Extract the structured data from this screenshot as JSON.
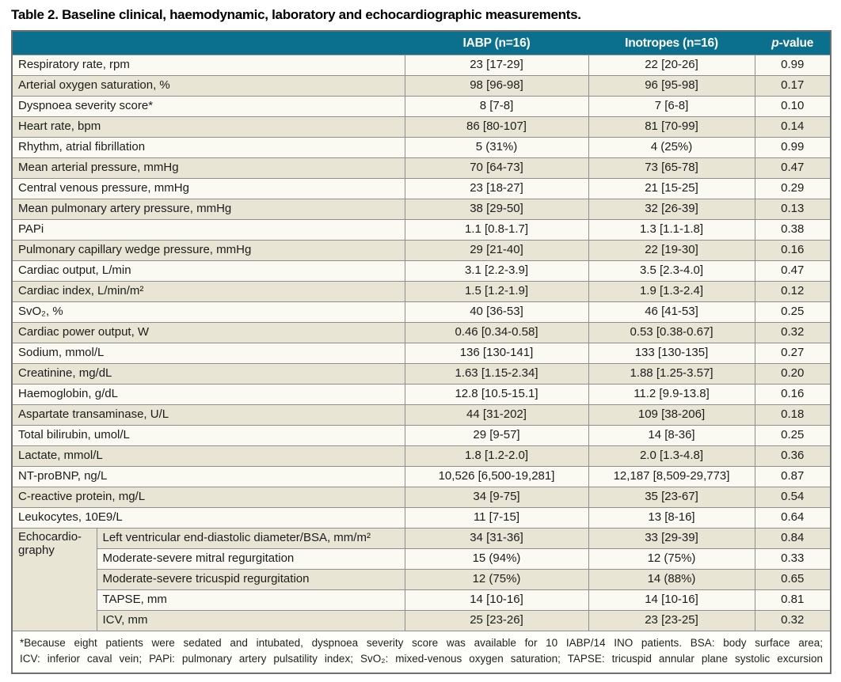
{
  "title": "Table 2. Baseline clinical, haemodynamic, laboratory and echocardiographic measurements.",
  "table": {
    "headers": {
      "parameter": "",
      "iabp": "IABP (n=16)",
      "inotropes": "Inotropes (n=16)",
      "pvalue": "p-value"
    },
    "rows": [
      {
        "label": "Respiratory rate, rpm",
        "iabp": "23 [17-29]",
        "inotropes": "22 [20-26]",
        "p": "0.99"
      },
      {
        "label": "Arterial oxygen saturation, %",
        "iabp": "98 [96-98]",
        "inotropes": "96 [95-98]",
        "p": "0.17"
      },
      {
        "label": "Dyspnoea severity score*",
        "iabp": "8 [7-8]",
        "inotropes": "7 [6-8]",
        "p": "0.10"
      },
      {
        "label": "Heart rate, bpm",
        "iabp": "86 [80-107]",
        "inotropes": "81 [70-99]",
        "p": "0.14"
      },
      {
        "label": "Rhythm, atrial fibrillation",
        "iabp": "5 (31%)",
        "inotropes": "4 (25%)",
        "p": "0.99"
      },
      {
        "label": "Mean arterial pressure, mmHg",
        "iabp": "70 [64-73]",
        "inotropes": "73 [65-78]",
        "p": "0.47"
      },
      {
        "label": "Central venous pressure, mmHg",
        "iabp": "23 [18-27]",
        "inotropes": "21 [15-25]",
        "p": "0.29"
      },
      {
        "label": "Mean pulmonary artery pressure, mmHg",
        "iabp": "38 [29-50]",
        "inotropes": "32 [26-39]",
        "p": "0.13"
      },
      {
        "label": "PAPi",
        "iabp": "1.1 [0.8-1.7]",
        "inotropes": "1.3 [1.1-1.8]",
        "p": "0.38"
      },
      {
        "label": "Pulmonary capillary wedge pressure, mmHg",
        "iabp": "29 [21-40]",
        "inotropes": "22 [19-30]",
        "p": "0.16"
      },
      {
        "label": "Cardiac output, L/min",
        "iabp": "3.1 [2.2-3.9]",
        "inotropes": "3.5 [2.3-4.0]",
        "p": "0.47"
      },
      {
        "label": "Cardiac index, L/min/m²",
        "iabp": "1.5 [1.2-1.9]",
        "inotropes": "1.9 [1.3-2.4]",
        "p": "0.12"
      },
      {
        "label": "SvO₂, %",
        "iabp": "40 [36-53]",
        "inotropes": "46 [41-53]",
        "p": "0.25"
      },
      {
        "label": "Cardiac power output, W",
        "iabp": "0.46 [0.34-0.58]",
        "inotropes": "0.53 [0.38-0.67]",
        "p": "0.32"
      },
      {
        "label": "Sodium, mmol/L",
        "iabp": "136 [130-141]",
        "inotropes": "133 [130-135]",
        "p": "0.27"
      },
      {
        "label": "Creatinine, mg/dL",
        "iabp": "1.63 [1.15-2.34]",
        "inotropes": "1.88 [1.25-3.57]",
        "p": "0.20"
      },
      {
        "label": "Haemoglobin, g/dL",
        "iabp": "12.8 [10.5-15.1]",
        "inotropes": "11.2 [9.9-13.8]",
        "p": "0.16"
      },
      {
        "label": "Aspartate transaminase, U/L",
        "iabp": "44 [31-202]",
        "inotropes": "109 [38-206]",
        "p": "0.18"
      },
      {
        "label": "Total bilirubin, umol/L",
        "iabp": "29 [9-57]",
        "inotropes": "14 [8-36]",
        "p": "0.25"
      },
      {
        "label": "Lactate, mmol/L",
        "iabp": "1.8 [1.2-2.0]",
        "inotropes": "2.0 [1.3-4.8]",
        "p": "0.36"
      },
      {
        "label": "NT-proBNP, ng/L",
        "iabp": "10,526 [6,500-19,281]",
        "inotropes": "12,187 [8,509-29,773]",
        "p": "0.87"
      },
      {
        "label": "C-reactive protein, mg/L",
        "iabp": "34 [9-75]",
        "inotropes": "35 [23-67]",
        "p": "0.54"
      },
      {
        "label": "Leukocytes, 10E9/L",
        "iabp": "11 [7-15]",
        "inotropes": "13 [8-16]",
        "p": "0.64"
      }
    ],
    "echo": {
      "label": "Echocardio-\ngraphy",
      "rows": [
        {
          "label": "Left ventricular end-diastolic diameter/BSA, mm/m²",
          "iabp": "34 [31-36]",
          "inotropes": "33 [29-39]",
          "p": "0.84"
        },
        {
          "label": "Moderate-severe mitral regurgitation",
          "iabp": "15 (94%)",
          "inotropes": "12 (75%)",
          "p": "0.33"
        },
        {
          "label": "Moderate-severe tricuspid regurgitation",
          "iabp": "12 (75%)",
          "inotropes": "14 (88%)",
          "p": "0.65"
        },
        {
          "label": "TAPSE, mm",
          "iabp": "14 [10-16]",
          "inotropes": "14 [10-16]",
          "p": "0.81"
        },
        {
          "label": "ICV, mm",
          "iabp": "25 [23-26]",
          "inotropes": "23 [23-25]",
          "p": "0.32"
        }
      ]
    }
  },
  "footnote": {
    "line1": "*Because eight patients were sedated and intubated, dyspnoea severity score was available for 10 IABP/14 INO patients. BSA: body surface area;",
    "line2": "ICV: inferior caval vein; PAPi: pulmonary artery pulsatility index; SvO₂: mixed-venous oxygen saturation; TAPSE: tricuspid annular plane systolic excursion"
  },
  "colors": {
    "header_bg": "#0b6f8e",
    "header_text": "#ffffff",
    "row_light": "#faf9f2",
    "row_beige": "#e9e5d4",
    "border": "#8e8e8e"
  }
}
